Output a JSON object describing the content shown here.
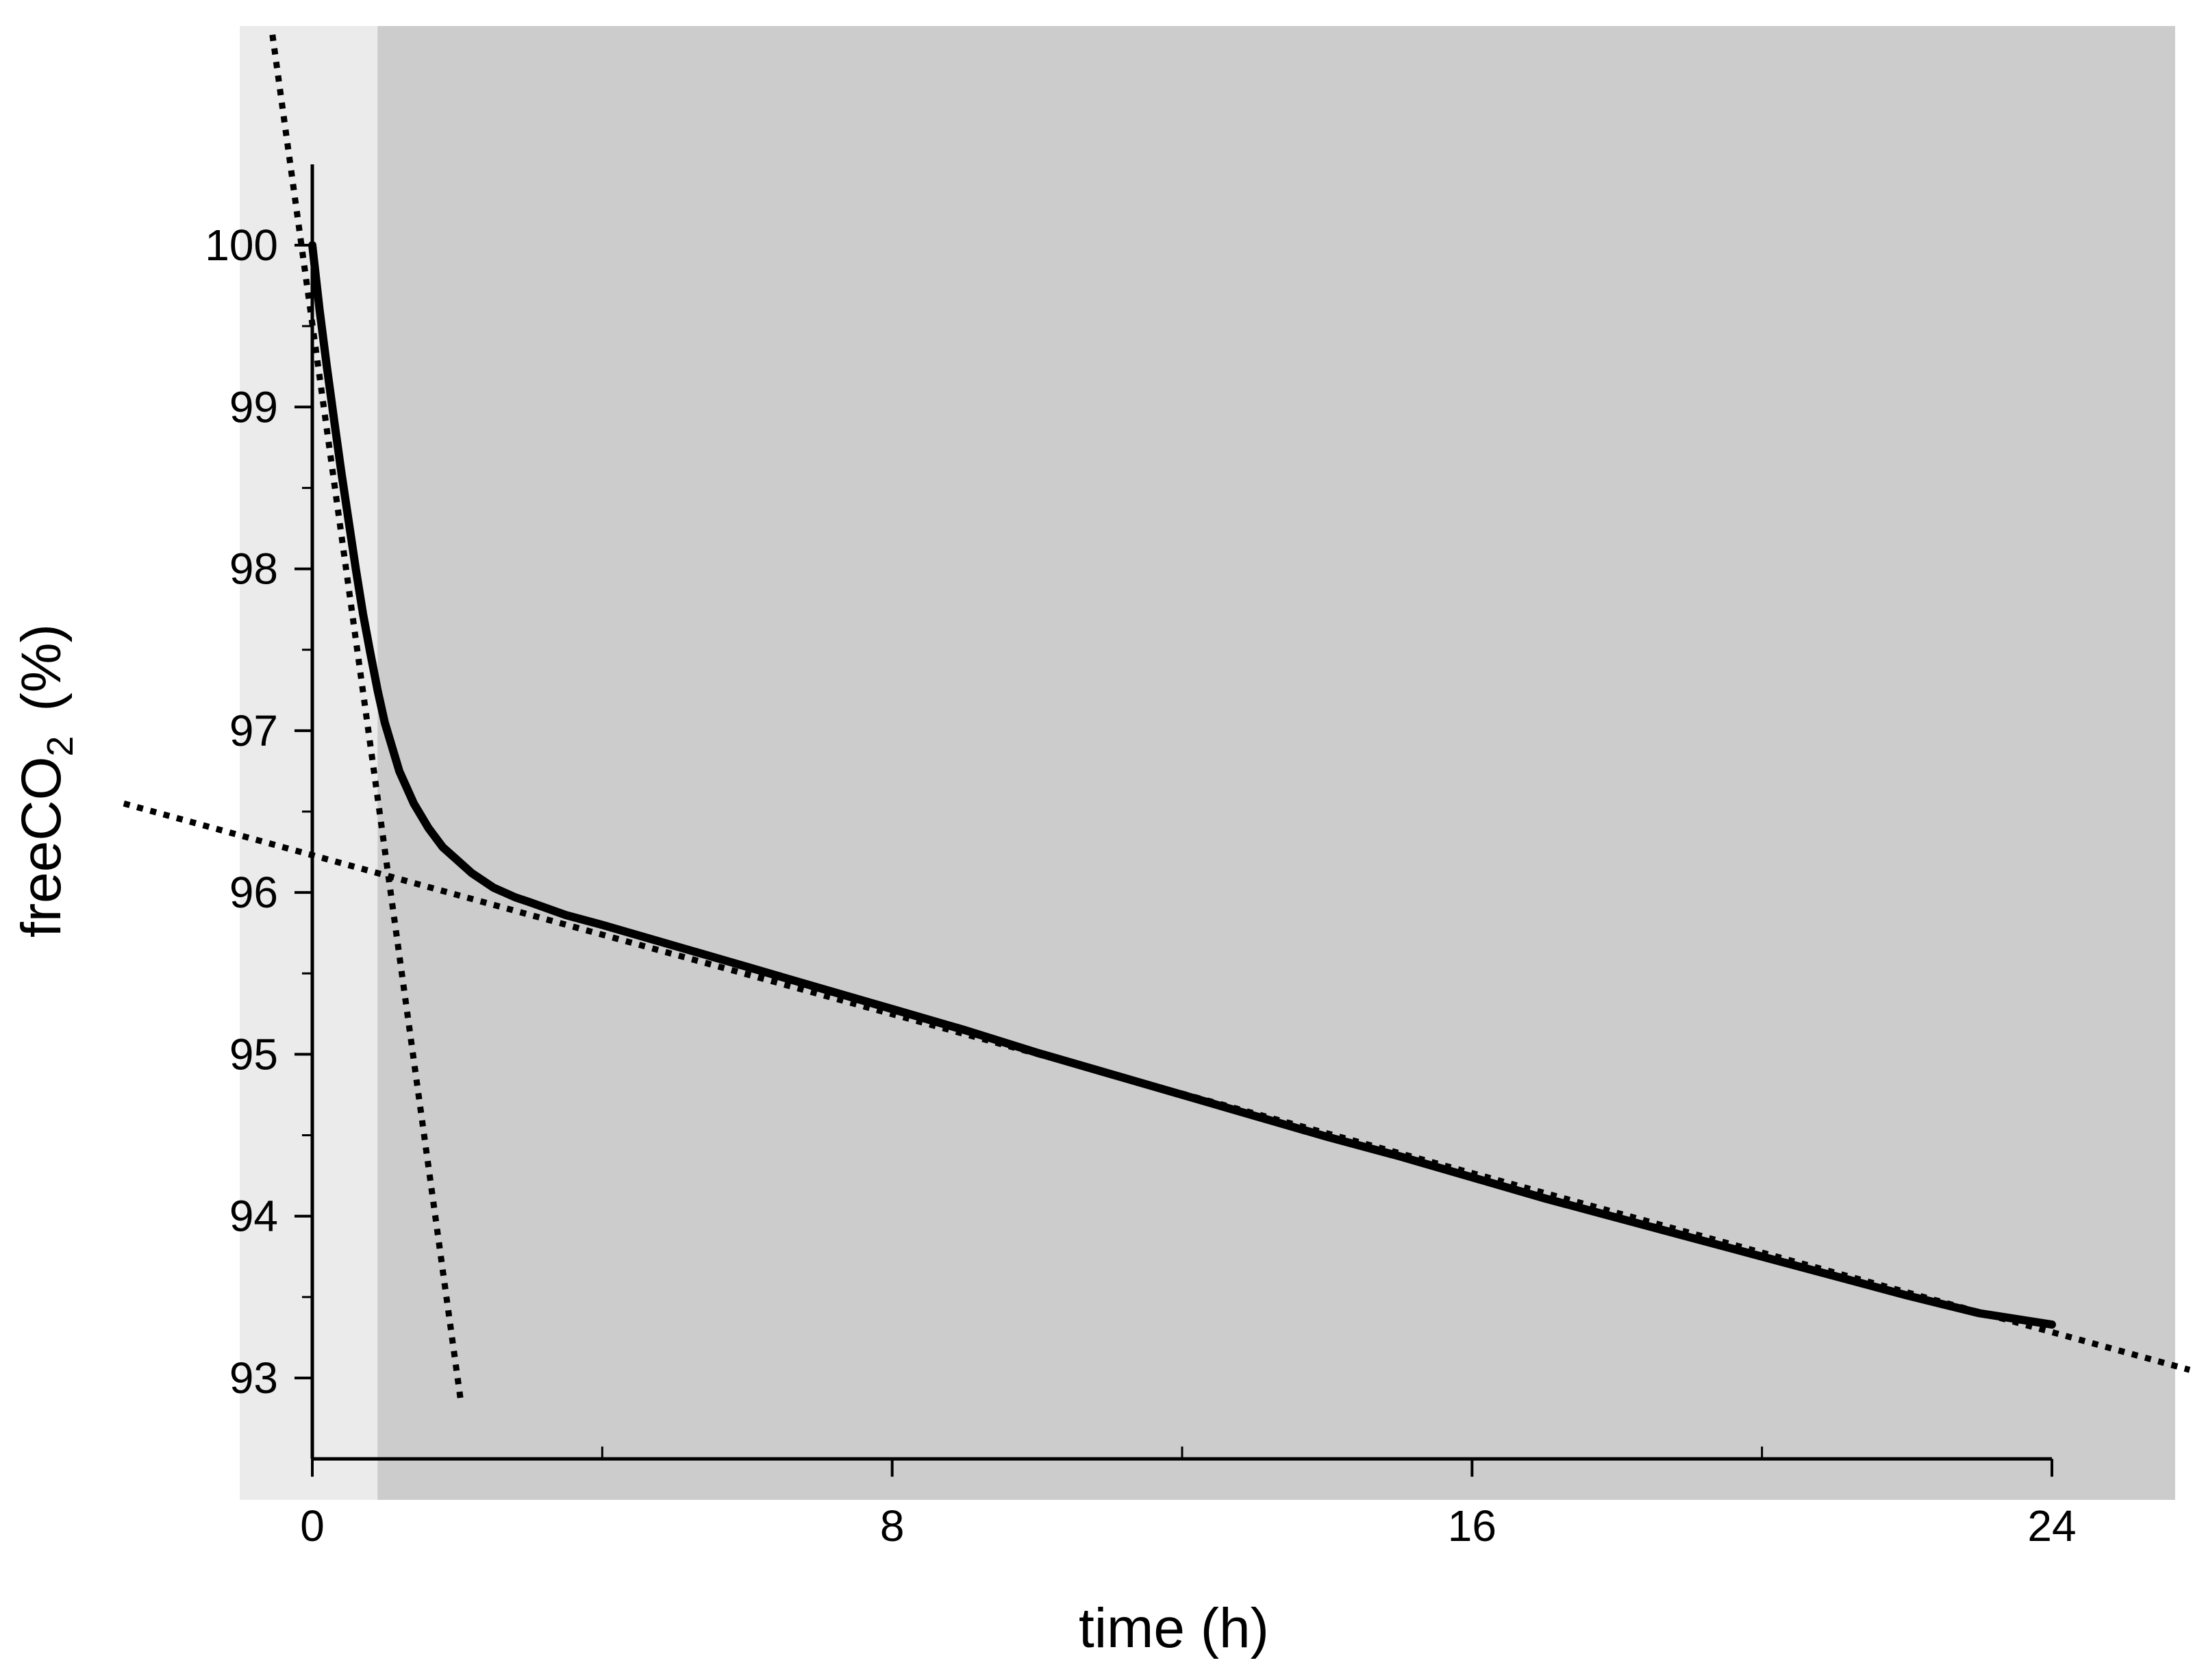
{
  "chart_data": {
    "type": "line",
    "title": "",
    "xlabel": "time (h)",
    "ylabel": {
      "prefix": "freeCO",
      "subscript": "2",
      "suffix": "(%)"
    },
    "xlim": [
      -1,
      24.6
    ],
    "ylim": [
      92.5,
      100.5
    ],
    "x_ticks": [
      0,
      8,
      16,
      24
    ],
    "x_minor_ticks": [
      4,
      12,
      20
    ],
    "y_ticks": [
      93,
      94,
      95,
      96,
      97,
      98,
      99,
      100
    ],
    "y_minor_ticks": [
      93.5,
      94.5,
      95.5,
      96.5,
      97.5,
      98.5,
      99.5
    ],
    "grid": false,
    "shaded_regions": [
      {
        "x": [
          -1,
          0.9
        ],
        "color": "#ebebeb"
      },
      {
        "x": [
          0.9,
          25.7
        ],
        "color": "#cccccc"
      }
    ],
    "series": [
      {
        "style": "solid",
        "color": "#000000",
        "x": [
          0,
          0.1,
          0.2,
          0.3,
          0.4,
          0.5,
          0.6,
          0.7,
          0.8,
          0.9,
          1.0,
          1.2,
          1.4,
          1.6,
          1.8,
          2.0,
          2.2,
          2.5,
          2.8,
          3.0,
          3.5,
          4,
          5,
          6,
          7,
          8,
          9,
          10,
          11,
          12,
          13,
          14,
          15,
          16,
          17,
          18,
          19,
          20,
          21,
          22,
          23,
          24
        ],
        "y": [
          100.0,
          99.6,
          99.25,
          98.92,
          98.6,
          98.3,
          98.0,
          97.72,
          97.48,
          97.25,
          97.05,
          96.75,
          96.55,
          96.4,
          96.28,
          96.2,
          96.12,
          96.03,
          95.97,
          95.94,
          95.86,
          95.8,
          95.67,
          95.54,
          95.41,
          95.28,
          95.15,
          95.01,
          94.88,
          94.75,
          94.62,
          94.49,
          94.37,
          94.24,
          94.11,
          93.99,
          93.87,
          93.75,
          93.63,
          93.51,
          93.4,
          93.33
        ]
      },
      {
        "style": "dotted",
        "color": "#000000",
        "x": [
          -0.55,
          2.05
        ],
        "y": [
          101.3,
          92.85
        ]
      },
      {
        "style": "dotted",
        "color": "#000000",
        "x": [
          -2.6,
          25.9
        ],
        "y": [
          96.55,
          93.05
        ]
      }
    ]
  }
}
